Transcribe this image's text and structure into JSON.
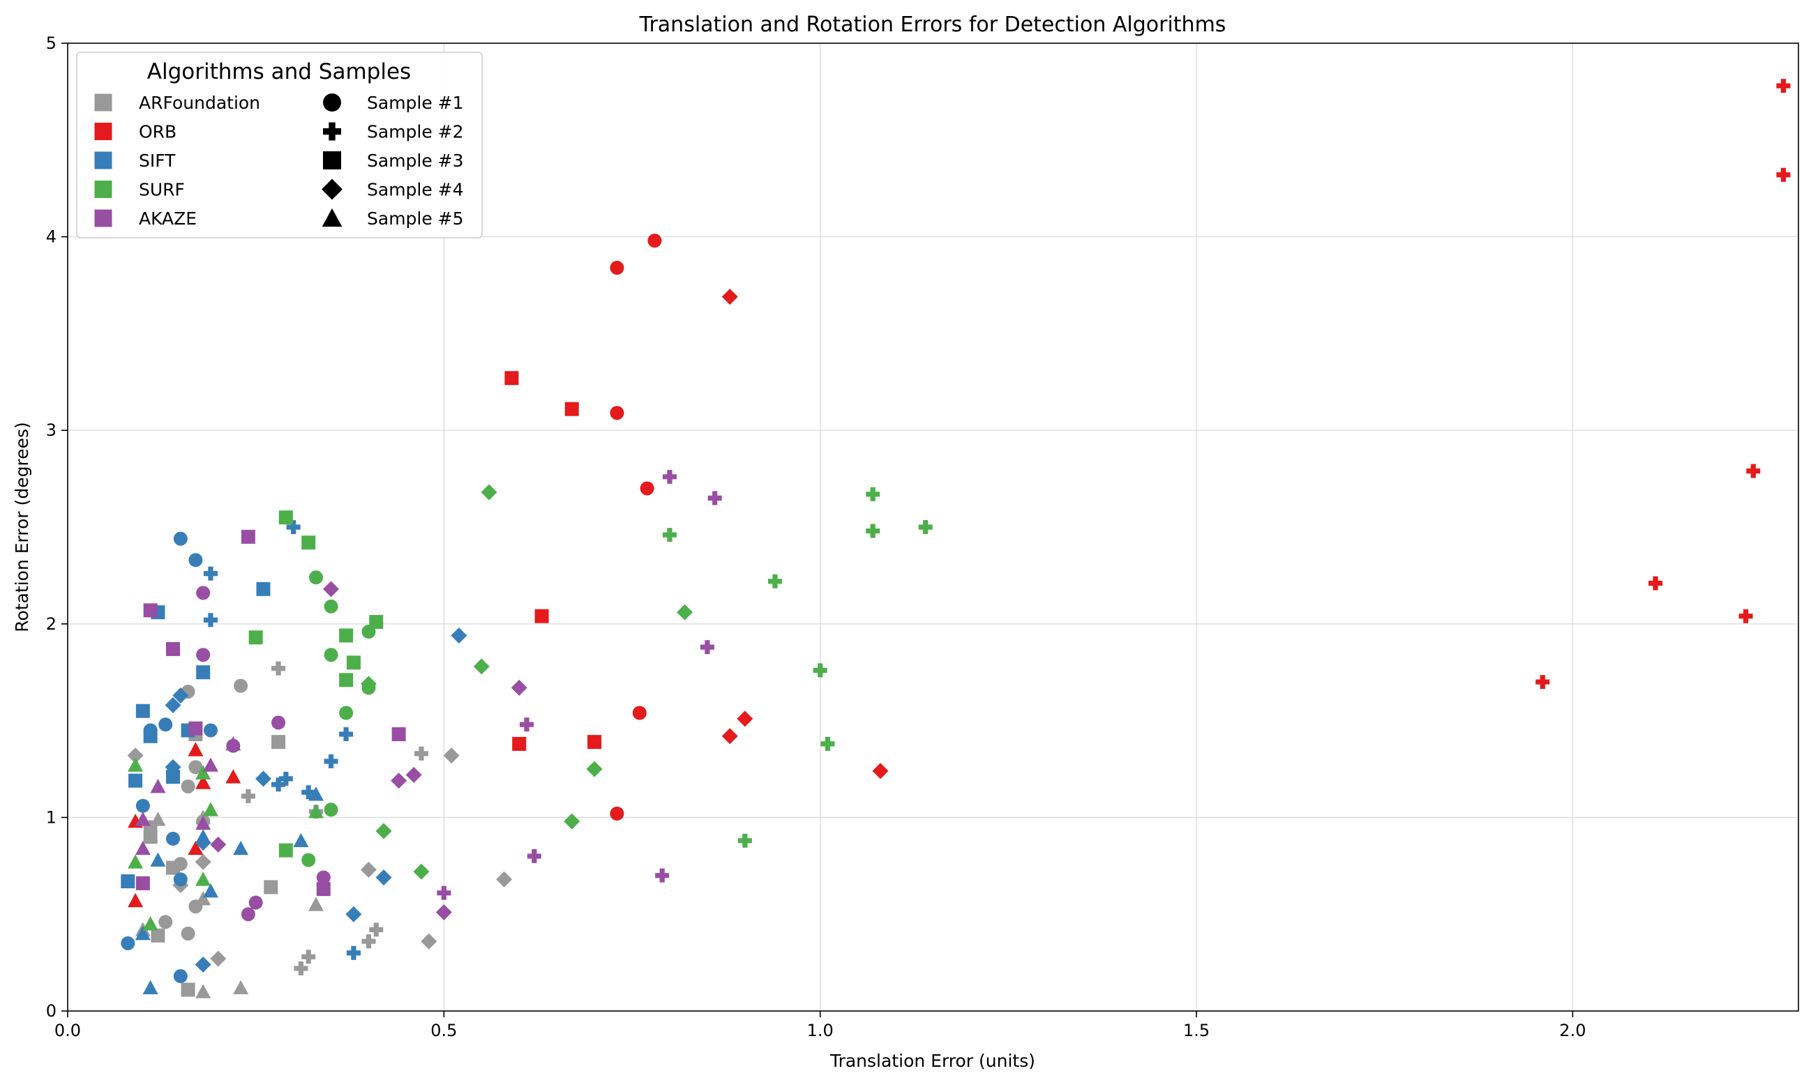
{
  "chart_data": {
    "type": "scatter",
    "title": "Translation and Rotation Errors for Detection Algorithms",
    "xlabel": "Translation Error (units)",
    "ylabel": "Rotation Error (degrees)",
    "xlim": [
      0,
      2.3
    ],
    "ylim": [
      0,
      5
    ],
    "xticks": [
      0.0,
      0.5,
      1.0,
      1.5,
      2.0
    ],
    "xtick_labels": [
      "0.0",
      "0.5",
      "1.0",
      "1.5",
      "2.0"
    ],
    "yticks": [
      0,
      1,
      2,
      3,
      4,
      5
    ],
    "ytick_labels": [
      "0",
      "1",
      "2",
      "3",
      "4",
      "5"
    ],
    "grid": true,
    "legend": {
      "title": "Algorithms and Samples",
      "placement": "top-left",
      "algorithms": [
        {
          "name": "ARFoundation",
          "color": "#999999"
        },
        {
          "name": "ORB",
          "color": "#e41a1c"
        },
        {
          "name": "SIFT",
          "color": "#377eb8"
        },
        {
          "name": "SURF",
          "color": "#4daf4a"
        },
        {
          "name": "AKAZE",
          "color": "#984ea3"
        }
      ],
      "samples": [
        {
          "name": "Sample #1",
          "marker": "circle"
        },
        {
          "name": "Sample #2",
          "marker": "plus"
        },
        {
          "name": "Sample #3",
          "marker": "square"
        },
        {
          "name": "Sample #4",
          "marker": "diamond"
        },
        {
          "name": "Sample #5",
          "marker": "triangle"
        }
      ]
    },
    "series": [
      {
        "name": "ARFoundation",
        "color": "#999999",
        "points": [
          {
            "sample": "Sample #1",
            "values": [
              [
                0.16,
                1.65
              ],
              [
                0.23,
                1.68
              ],
              [
                0.17,
                1.26
              ],
              [
                0.16,
                1.16
              ],
              [
                0.11,
                0.95
              ],
              [
                0.15,
                0.76
              ],
              [
                0.13,
                0.46
              ],
              [
                0.17,
                0.54
              ],
              [
                0.16,
                0.4
              ],
              [
                0.18,
                0.98
              ]
            ]
          },
          {
            "sample": "Sample #2",
            "values": [
              [
                0.28,
                1.77
              ],
              [
                0.24,
                1.11
              ],
              [
                0.47,
                1.33
              ],
              [
                0.33,
                1.03
              ],
              [
                0.41,
                0.42
              ],
              [
                0.4,
                0.36
              ],
              [
                0.32,
                0.28
              ],
              [
                0.31,
                0.22
              ]
            ]
          },
          {
            "sample": "Sample #3",
            "values": [
              [
                0.28,
                1.39
              ],
              [
                0.17,
                1.43
              ],
              [
                0.11,
                0.9
              ],
              [
                0.14,
                0.74
              ],
              [
                0.27,
                0.64
              ],
              [
                0.12,
                0.39
              ],
              [
                0.16,
                0.11
              ]
            ]
          },
          {
            "sample": "Sample #4",
            "values": [
              [
                0.09,
                1.32
              ],
              [
                0.51,
                1.32
              ],
              [
                0.4,
                0.73
              ],
              [
                0.18,
                0.77
              ],
              [
                0.58,
                0.68
              ],
              [
                0.15,
                0.65
              ],
              [
                0.48,
                0.36
              ],
              [
                0.2,
                0.27
              ]
            ]
          },
          {
            "sample": "Sample #5",
            "values": [
              [
                0.18,
                1.0
              ],
              [
                0.12,
                0.99
              ],
              [
                0.1,
                0.42
              ],
              [
                0.18,
                0.58
              ],
              [
                0.33,
                0.55
              ],
              [
                0.23,
                0.12
              ],
              [
                0.18,
                0.1
              ]
            ]
          }
        ]
      },
      {
        "name": "ORB",
        "color": "#e41a1c",
        "points": [
          {
            "sample": "Sample #1",
            "values": [
              [
                0.78,
                3.98
              ],
              [
                0.73,
                3.84
              ],
              [
                0.73,
                3.09
              ],
              [
                0.77,
                2.7
              ],
              [
                0.76,
                1.54
              ],
              [
                0.73,
                1.02
              ]
            ]
          },
          {
            "sample": "Sample #2",
            "values": [
              [
                2.28,
                4.78
              ],
              [
                2.28,
                4.32
              ],
              [
                2.24,
                2.79
              ],
              [
                2.11,
                2.21
              ],
              [
                2.23,
                2.04
              ],
              [
                1.96,
                1.7
              ]
            ]
          },
          {
            "sample": "Sample #3",
            "values": [
              [
                0.59,
                3.27
              ],
              [
                0.67,
                3.11
              ],
              [
                0.63,
                2.04
              ],
              [
                0.7,
                1.39
              ],
              [
                0.6,
                1.38
              ]
            ]
          },
          {
            "sample": "Sample #4",
            "values": [
              [
                0.88,
                3.69
              ],
              [
                0.9,
                1.51
              ],
              [
                0.88,
                1.42
              ],
              [
                1.08,
                1.24
              ]
            ]
          },
          {
            "sample": "Sample #5",
            "values": [
              [
                0.17,
                1.35
              ],
              [
                0.22,
                1.21
              ],
              [
                0.18,
                1.18
              ],
              [
                0.09,
                0.98
              ],
              [
                0.17,
                0.84
              ],
              [
                0.09,
                0.57
              ]
            ]
          }
        ]
      },
      {
        "name": "SIFT",
        "color": "#377eb8",
        "points": [
          {
            "sample": "Sample #1",
            "values": [
              [
                0.15,
                2.44
              ],
              [
                0.17,
                2.33
              ],
              [
                0.19,
                1.45
              ],
              [
                0.13,
                1.48
              ],
              [
                0.11,
                1.45
              ],
              [
                0.1,
                1.06
              ],
              [
                0.14,
                0.89
              ],
              [
                0.15,
                0.68
              ],
              [
                0.08,
                0.35
              ],
              [
                0.15,
                0.18
              ]
            ]
          },
          {
            "sample": "Sample #2",
            "values": [
              [
                0.3,
                2.5
              ],
              [
                0.19,
                2.26
              ],
              [
                0.19,
                2.02
              ],
              [
                0.37,
                1.43
              ],
              [
                0.35,
                1.29
              ],
              [
                0.29,
                1.2
              ],
              [
                0.28,
                1.17
              ],
              [
                0.32,
                1.13
              ],
              [
                0.38,
                0.3
              ]
            ]
          },
          {
            "sample": "Sample #3",
            "values": [
              [
                0.12,
                2.06
              ],
              [
                0.26,
                2.18
              ],
              [
                0.18,
                1.75
              ],
              [
                0.1,
                1.55
              ],
              [
                0.16,
                1.45
              ],
              [
                0.11,
                1.42
              ],
              [
                0.14,
                1.21
              ],
              [
                0.09,
                1.19
              ],
              [
                0.08,
                0.67
              ]
            ]
          },
          {
            "sample": "Sample #4",
            "values": [
              [
                0.52,
                1.94
              ],
              [
                0.15,
                1.63
              ],
              [
                0.14,
                1.58
              ],
              [
                0.14,
                1.26
              ],
              [
                0.26,
                1.2
              ],
              [
                0.18,
                0.87
              ],
              [
                0.42,
                0.69
              ],
              [
                0.38,
                0.5
              ],
              [
                0.18,
                0.24
              ]
            ]
          },
          {
            "sample": "Sample #5",
            "values": [
              [
                0.33,
                1.12
              ],
              [
                0.31,
                0.88
              ],
              [
                0.23,
                0.84
              ],
              [
                0.18,
                0.9
              ],
              [
                0.12,
                0.78
              ],
              [
                0.19,
                0.62
              ],
              [
                0.1,
                0.4
              ],
              [
                0.11,
                0.12
              ]
            ]
          }
        ]
      },
      {
        "name": "SURF",
        "color": "#4daf4a",
        "points": [
          {
            "sample": "Sample #1",
            "values": [
              [
                0.33,
                2.24
              ],
              [
                0.35,
                2.09
              ],
              [
                0.4,
                1.96
              ],
              [
                0.35,
                1.84
              ],
              [
                0.4,
                1.67
              ],
              [
                0.37,
                1.54
              ],
              [
                0.35,
                1.04
              ],
              [
                0.32,
                0.78
              ]
            ]
          },
          {
            "sample": "Sample #2",
            "values": [
              [
                1.07,
                2.67
              ],
              [
                1.07,
                2.48
              ],
              [
                1.14,
                2.5
              ],
              [
                0.8,
                2.46
              ],
              [
                0.94,
                2.22
              ],
              [
                1.0,
                1.76
              ],
              [
                1.01,
                1.38
              ],
              [
                0.9,
                0.88
              ]
            ]
          },
          {
            "sample": "Sample #3",
            "values": [
              [
                0.29,
                2.55
              ],
              [
                0.32,
                2.42
              ],
              [
                0.41,
                2.01
              ],
              [
                0.25,
                1.93
              ],
              [
                0.37,
                1.94
              ],
              [
                0.38,
                1.8
              ],
              [
                0.37,
                1.71
              ],
              [
                0.29,
                0.83
              ]
            ]
          },
          {
            "sample": "Sample #4",
            "values": [
              [
                0.56,
                2.68
              ],
              [
                0.82,
                2.06
              ],
              [
                0.55,
                1.78
              ],
              [
                0.4,
                1.69
              ],
              [
                0.7,
                1.25
              ],
              [
                0.67,
                0.98
              ],
              [
                0.42,
                0.93
              ],
              [
                0.47,
                0.72
              ]
            ]
          },
          {
            "sample": "Sample #5",
            "values": [
              [
                0.09,
                1.27
              ],
              [
                0.18,
                1.23
              ],
              [
                0.19,
                1.04
              ],
              [
                0.33,
                1.03
              ],
              [
                0.09,
                0.77
              ],
              [
                0.18,
                0.68
              ],
              [
                0.11,
                0.45
              ]
            ]
          }
        ]
      },
      {
        "name": "AKAZE",
        "color": "#984ea3",
        "points": [
          {
            "sample": "Sample #1",
            "values": [
              [
                0.18,
                2.16
              ],
              [
                0.18,
                1.84
              ],
              [
                0.28,
                1.49
              ],
              [
                0.22,
                1.37
              ],
              [
                0.34,
                0.69
              ],
              [
                0.25,
                0.56
              ],
              [
                0.24,
                0.5
              ]
            ]
          },
          {
            "sample": "Sample #2",
            "values": [
              [
                0.8,
                2.76
              ],
              [
                0.86,
                2.65
              ],
              [
                0.85,
                1.88
              ],
              [
                0.61,
                1.48
              ],
              [
                0.62,
                0.8
              ],
              [
                0.79,
                0.7
              ],
              [
                0.5,
                0.61
              ]
            ]
          },
          {
            "sample": "Sample #3",
            "values": [
              [
                0.24,
                2.45
              ],
              [
                0.11,
                2.07
              ],
              [
                0.14,
                1.87
              ],
              [
                0.17,
                1.46
              ],
              [
                0.44,
                1.43
              ],
              [
                0.1,
                0.66
              ],
              [
                0.34,
                0.63
              ]
            ]
          },
          {
            "sample": "Sample #4",
            "values": [
              [
                0.35,
                2.18
              ],
              [
                0.6,
                1.67
              ],
              [
                0.46,
                1.22
              ],
              [
                0.44,
                1.19
              ],
              [
                0.2,
                0.86
              ],
              [
                0.5,
                0.51
              ]
            ]
          },
          {
            "sample": "Sample #5",
            "values": [
              [
                0.22,
                1.38
              ],
              [
                0.19,
                1.27
              ],
              [
                0.12,
                1.16
              ],
              [
                0.1,
                0.99
              ],
              [
                0.18,
                0.97
              ],
              [
                0.1,
                0.84
              ]
            ]
          }
        ]
      }
    ]
  }
}
